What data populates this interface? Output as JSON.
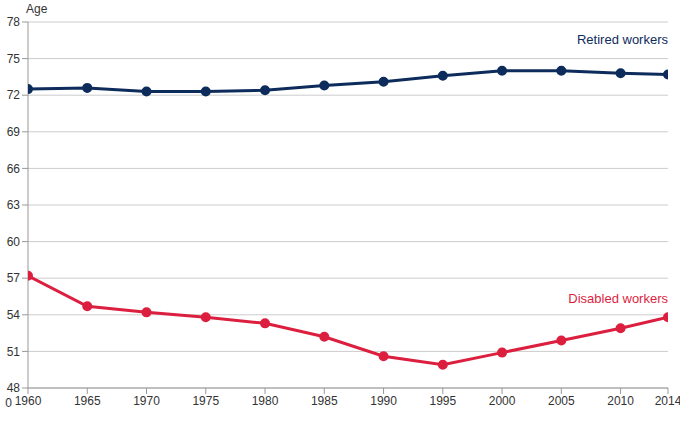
{
  "chart_data": {
    "type": "line",
    "y_label": "Age",
    "x": [
      1960,
      1965,
      1970,
      1975,
      1980,
      1985,
      1990,
      1995,
      2000,
      2005,
      2010,
      2014
    ],
    "series": [
      {
        "name": "Retired workers",
        "color": "#0d2c5c",
        "marker": "circle",
        "values": [
          72.5,
          72.6,
          72.3,
          72.3,
          72.4,
          72.8,
          73.1,
          73.6,
          74.0,
          74.0,
          73.8,
          73.7
        ]
      },
      {
        "name": "Disabled workers",
        "color": "#dc1f3f",
        "marker": "circle",
        "values": [
          57.2,
          54.7,
          54.2,
          53.8,
          53.3,
          52.2,
          50.6,
          49.9,
          50.9,
          51.9,
          52.9,
          53.8
        ]
      }
    ],
    "xlim": [
      1960,
      2014
    ],
    "xticks": [
      1960,
      1965,
      1970,
      1975,
      1980,
      1985,
      1990,
      1995,
      2000,
      2005,
      2010,
      2014
    ],
    "ylim": [
      48,
      78
    ],
    "yticks": [
      48,
      51,
      54,
      57,
      60,
      63,
      66,
      69,
      72,
      75,
      78
    ],
    "y_break_tick": 0,
    "grid": true
  }
}
